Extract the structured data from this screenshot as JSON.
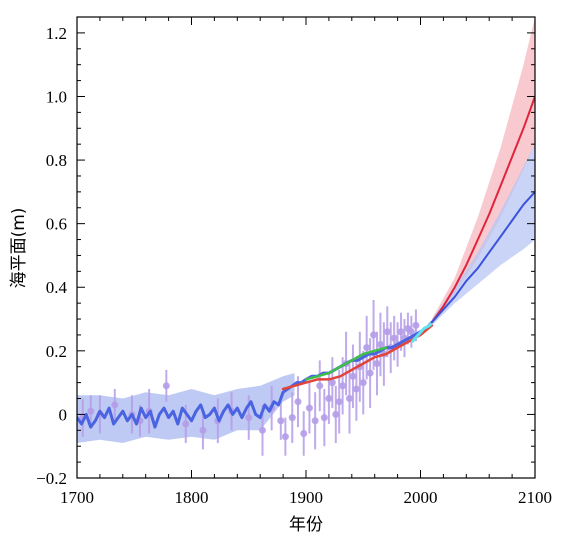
{
  "chart_data": {
    "type": "line",
    "title": "",
    "xlabel": "年份",
    "ylabel": "海平面(m)",
    "xlim": [
      1700,
      2100
    ],
    "ylim": [
      -0.2,
      1.25
    ],
    "grid": false,
    "legend": "none",
    "x_ticks": [
      {
        "value": 1700,
        "label": "1700"
      },
      {
        "value": 1800,
        "label": "1800"
      },
      {
        "value": 1900,
        "label": "1900"
      },
      {
        "value": 2000,
        "label": "2000"
      },
      {
        "value": 2100,
        "label": "2100"
      }
    ],
    "y_ticks": [
      {
        "value": -0.2,
        "label": "−0.2"
      },
      {
        "value": 0,
        "label": "0"
      },
      {
        "value": 0.2,
        "label": "0.2"
      },
      {
        "value": 0.4,
        "label": "0.4"
      },
      {
        "value": 0.6,
        "label": "0.6"
      },
      {
        "value": 0.8,
        "label": "0.8"
      },
      {
        "value": 1.0,
        "label": "1.0"
      },
      {
        "value": 1.2,
        "label": "1.2"
      }
    ],
    "series": [
      {
        "kind": "band",
        "color": "#aab8f0",
        "x": [
          1700,
          1720,
          1740,
          1760,
          1780,
          1800,
          1820,
          1840,
          1860,
          1880,
          1890
        ],
        "lower": [
          -0.09,
          -0.08,
          -0.09,
          -0.07,
          -0.08,
          -0.07,
          -0.08,
          -0.05,
          -0.05,
          0.04,
          0.06
        ],
        "upper": [
          0.06,
          0.06,
          0.05,
          0.07,
          0.06,
          0.08,
          0.06,
          0.08,
          0.09,
          0.12,
          0.13
        ]
      },
      {
        "kind": "errorbars",
        "color": "#b49ce8",
        "points": [
          {
            "x": 1705,
            "y": -0.01,
            "err": 0.06
          },
          {
            "x": 1712,
            "y": 0.01,
            "err": 0.05
          },
          {
            "x": 1720,
            "y": 0.0,
            "err": 0.06
          },
          {
            "x": 1733,
            "y": 0.03,
            "err": 0.05
          },
          {
            "x": 1748,
            "y": 0.0,
            "err": 0.06
          },
          {
            "x": 1755,
            "y": -0.02,
            "err": 0.05
          },
          {
            "x": 1763,
            "y": 0.01,
            "err": 0.07
          },
          {
            "x": 1778,
            "y": 0.09,
            "err": 0.05
          },
          {
            "x": 1795,
            "y": -0.03,
            "err": 0.06
          },
          {
            "x": 1810,
            "y": -0.05,
            "err": 0.06
          },
          {
            "x": 1823,
            "y": -0.02,
            "err": 0.07
          },
          {
            "x": 1835,
            "y": 0.01,
            "err": 0.06
          },
          {
            "x": 1850,
            "y": -0.01,
            "err": 0.07
          },
          {
            "x": 1862,
            "y": -0.05,
            "err": 0.08
          },
          {
            "x": 1870,
            "y": 0.02,
            "err": 0.07
          },
          {
            "x": 1878,
            "y": -0.02,
            "err": 0.06
          },
          {
            "x": 1882,
            "y": -0.07,
            "err": 0.06
          },
          {
            "x": 1888,
            "y": -0.01,
            "err": 0.08
          },
          {
            "x": 1893,
            "y": 0.04,
            "err": 0.08
          },
          {
            "x": 1898,
            "y": -0.06,
            "err": 0.07
          },
          {
            "x": 1903,
            "y": 0.02,
            "err": 0.08
          },
          {
            "x": 1908,
            "y": -0.02,
            "err": 0.09
          },
          {
            "x": 1912,
            "y": 0.09,
            "err": 0.08
          },
          {
            "x": 1916,
            "y": -0.01,
            "err": 0.09
          },
          {
            "x": 1920,
            "y": 0.05,
            "err": 0.08
          },
          {
            "x": 1923,
            "y": 0.1,
            "err": 0.08
          },
          {
            "x": 1926,
            "y": 0.0,
            "err": 0.09
          },
          {
            "x": 1929,
            "y": 0.04,
            "err": 0.1
          },
          {
            "x": 1932,
            "y": 0.09,
            "err": 0.09
          },
          {
            "x": 1935,
            "y": 0.16,
            "err": 0.1
          },
          {
            "x": 1938,
            "y": 0.05,
            "err": 0.11
          },
          {
            "x": 1941,
            "y": 0.12,
            "err": 0.1
          },
          {
            "x": 1944,
            "y": 0.08,
            "err": 0.1
          },
          {
            "x": 1947,
            "y": 0.15,
            "err": 0.11
          },
          {
            "x": 1950,
            "y": 0.1,
            "err": 0.1
          },
          {
            "x": 1953,
            "y": 0.21,
            "err": 0.1
          },
          {
            "x": 1956,
            "y": 0.13,
            "err": 0.11
          },
          {
            "x": 1959,
            "y": 0.25,
            "err": 0.11
          },
          {
            "x": 1962,
            "y": 0.16,
            "err": 0.1
          },
          {
            "x": 1965,
            "y": 0.22,
            "err": 0.1
          },
          {
            "x": 1968,
            "y": 0.19,
            "err": 0.1
          },
          {
            "x": 1971,
            "y": 0.26,
            "err": 0.08
          },
          {
            "x": 1974,
            "y": 0.21,
            "err": 0.08
          },
          {
            "x": 1977,
            "y": 0.24,
            "err": 0.07
          },
          {
            "x": 1980,
            "y": 0.22,
            "err": 0.07
          },
          {
            "x": 1983,
            "y": 0.26,
            "err": 0.06
          },
          {
            "x": 1986,
            "y": 0.24,
            "err": 0.06
          },
          {
            "x": 1989,
            "y": 0.27,
            "err": 0.05
          },
          {
            "x": 1992,
            "y": 0.26,
            "err": 0.05
          },
          {
            "x": 1996,
            "y": 0.28,
            "err": 0.05
          }
        ]
      },
      {
        "kind": "line",
        "color": "#4a63e0",
        "width": 3,
        "x": [
          1700,
          1704,
          1708,
          1712,
          1716,
          1720,
          1724,
          1728,
          1732,
          1736,
          1740,
          1744,
          1748,
          1752,
          1756,
          1760,
          1764,
          1768,
          1772,
          1776,
          1780,
          1784,
          1788,
          1792,
          1796,
          1800,
          1804,
          1808,
          1812,
          1816,
          1820,
          1824,
          1828,
          1832,
          1836,
          1840,
          1844,
          1848,
          1852,
          1856,
          1860,
          1864,
          1868,
          1872,
          1876,
          1880,
          1884,
          1888,
          1892,
          1896,
          1900,
          1905,
          1910,
          1915,
          1920,
          1925,
          1930,
          1935,
          1940,
          1945,
          1950,
          1955,
          1960,
          1965,
          1970,
          1975,
          1980,
          1985,
          1990,
          1995,
          2000,
          2005,
          2010
        ],
        "y": [
          -0.01,
          -0.03,
          0.0,
          -0.04,
          -0.02,
          0.01,
          -0.01,
          0.02,
          -0.03,
          -0.01,
          0.01,
          -0.02,
          0.0,
          -0.03,
          0.02,
          -0.01,
          0.01,
          -0.04,
          0.0,
          0.02,
          -0.01,
          0.01,
          -0.03,
          0.02,
          0.0,
          -0.02,
          0.01,
          0.03,
          -0.01,
          0.0,
          0.02,
          -0.02,
          0.01,
          0.03,
          0.0,
          0.02,
          -0.01,
          0.02,
          0.04,
          0.0,
          -0.01,
          0.03,
          0.01,
          0.04,
          0.03,
          0.07,
          0.08,
          0.09,
          0.1,
          0.1,
          0.11,
          0.12,
          0.12,
          0.13,
          0.13,
          0.14,
          0.15,
          0.16,
          0.17,
          0.17,
          0.18,
          0.19,
          0.19,
          0.2,
          0.21,
          0.21,
          0.22,
          0.23,
          0.24,
          0.25,
          0.26,
          0.27,
          0.29
        ]
      },
      {
        "kind": "line",
        "color": "#e0443a",
        "width": 2.5,
        "x": [
          1880,
          1890,
          1900,
          1910,
          1920,
          1930,
          1940,
          1950,
          1960,
          1970,
          1980,
          1990,
          2000,
          2010
        ],
        "y": [
          0.08,
          0.09,
          0.1,
          0.11,
          0.11,
          0.12,
          0.14,
          0.16,
          0.18,
          0.19,
          0.21,
          0.23,
          0.25,
          0.28
        ]
      },
      {
        "kind": "line",
        "color": "#3fbf4a",
        "width": 2.5,
        "x": [
          1900,
          1910,
          1920,
          1930,
          1940,
          1950,
          1960,
          1970
        ],
        "y": [
          0.11,
          0.12,
          0.13,
          0.15,
          0.17,
          0.19,
          0.2,
          0.21
        ]
      },
      {
        "kind": "line",
        "color": "#5ee3f0",
        "width": 3,
        "x": [
          1993,
          1998,
          2003,
          2008,
          2013
        ],
        "y": [
          0.23,
          0.25,
          0.27,
          0.28,
          0.3
        ]
      },
      {
        "kind": "band",
        "color": "#f6b8c0",
        "x": [
          2010,
          2030,
          2050,
          2070,
          2090,
          2100
        ],
        "lower": [
          0.28,
          0.38,
          0.49,
          0.62,
          0.77,
          0.85
        ],
        "upper": [
          0.3,
          0.43,
          0.62,
          0.84,
          1.1,
          1.25
        ]
      },
      {
        "kind": "band",
        "color": "#b7c5f4",
        "x": [
          2010,
          2030,
          2050,
          2070,
          2090,
          2100
        ],
        "lower": [
          0.28,
          0.35,
          0.41,
          0.47,
          0.52,
          0.55
        ],
        "upper": [
          0.3,
          0.4,
          0.51,
          0.64,
          0.78,
          0.85
        ]
      },
      {
        "kind": "line",
        "color": "#e0243a",
        "width": 2,
        "x": [
          2010,
          2020,
          2030,
          2040,
          2050,
          2060,
          2070,
          2080,
          2090,
          2100
        ],
        "y": [
          0.29,
          0.34,
          0.4,
          0.47,
          0.55,
          0.63,
          0.72,
          0.81,
          0.9,
          1.0
        ]
      },
      {
        "kind": "line",
        "color": "#3b52dc",
        "width": 2,
        "x": [
          2010,
          2020,
          2030,
          2040,
          2050,
          2060,
          2070,
          2080,
          2090,
          2100
        ],
        "y": [
          0.29,
          0.33,
          0.37,
          0.42,
          0.46,
          0.51,
          0.56,
          0.61,
          0.66,
          0.7
        ]
      }
    ]
  }
}
